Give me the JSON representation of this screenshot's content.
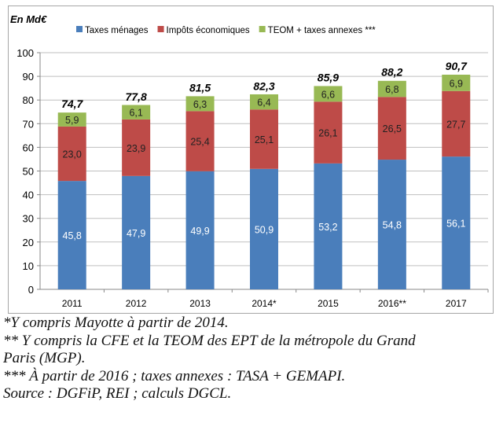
{
  "chart_data": {
    "type": "bar",
    "stacked": true,
    "unit_label": "En Md€",
    "categories": [
      "2011",
      "2012",
      "2013",
      "2014*",
      "2015",
      "2016**",
      "2017"
    ],
    "series": [
      {
        "name": "Taxes ménages",
        "color": "#4a7ebb",
        "values": [
          45.8,
          47.9,
          49.9,
          50.9,
          53.2,
          54.8,
          56.1
        ],
        "labels": [
          "45,8",
          "47,9",
          "49,9",
          "50,9",
          "53,2",
          "54,8",
          "56,1"
        ]
      },
      {
        "name": "Impôts économiques",
        "color": "#be4b48",
        "values": [
          23.0,
          23.9,
          25.4,
          25.1,
          26.1,
          26.5,
          27.7
        ],
        "labels": [
          "23,0",
          "23,9",
          "25,4",
          "25,1",
          "26,1",
          "26,5",
          "27,7"
        ]
      },
      {
        "name": "TEOM + taxes annexes ***",
        "color": "#98b954",
        "values": [
          5.9,
          6.1,
          6.3,
          6.4,
          6.6,
          6.8,
          6.9
        ],
        "labels": [
          "5,9",
          "6,1",
          "6,3",
          "6,4",
          "6,6",
          "6,8",
          "6,9"
        ]
      }
    ],
    "totals": [
      "74,7",
      "77,8",
      "81,5",
      "82,3",
      "85,9",
      "88,2",
      "90,7"
    ],
    "totals_values": [
      74.7,
      77.8,
      81.5,
      82.3,
      85.9,
      88.2,
      90.7
    ],
    "ylim": [
      0,
      100
    ],
    "yticks": [
      0,
      10,
      20,
      30,
      40,
      50,
      60,
      70,
      80,
      90,
      100
    ],
    "grid": true,
    "legend_position": "top"
  },
  "notes": [
    "*Y compris Mayotte à partir de 2014.",
    "** Y compris la CFE et la TEOM des EPT de la métropole du Grand",
    " Paris (MGP).",
    "*** À partir de 2016 ; taxes annexes : TASA + GEMAPI.",
    "Source : DGFiP, REI ; calculs DGCL."
  ]
}
